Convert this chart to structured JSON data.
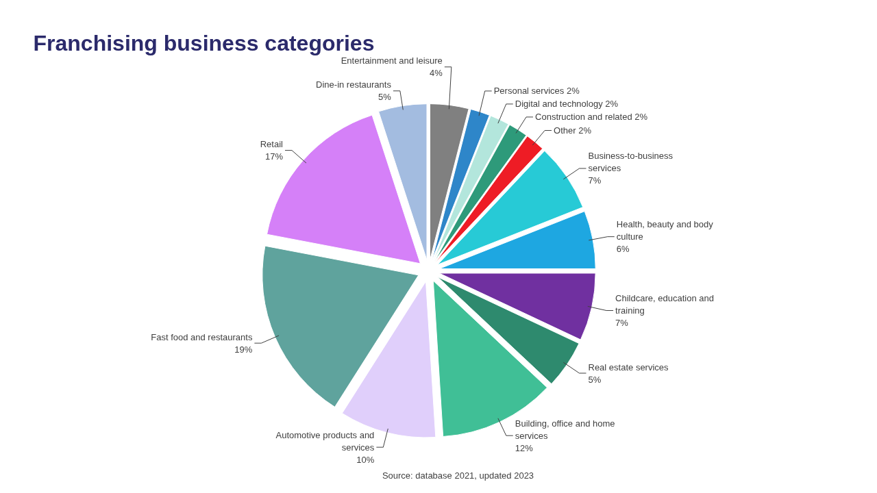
{
  "chart_data": {
    "type": "pie",
    "title": "Franchising business categories",
    "categories": [
      "Entertainment and leisure",
      "Personal services",
      "Digital and technology",
      "Construction and related",
      "Other",
      "Business-to-business services",
      "Health, beauty and body culture",
      "Childcare, education and training",
      "Real estate services",
      "Building, office and home services",
      "Automotive products and services",
      "Fast food and restaurants",
      "Retail",
      "Dine-in restaurants"
    ],
    "values": [
      4,
      2,
      2,
      2,
      2,
      7,
      6,
      7,
      5,
      12,
      10,
      19,
      17,
      5
    ],
    "colors": [
      "#808080",
      "#2e86c9",
      "#b3e6dc",
      "#2e9a7a",
      "#ee1c25",
      "#27cad6",
      "#1ea7e1",
      "#7030a0",
      "#2e8a6e",
      "#40bf96",
      "#e0cffb",
      "#5fa39d",
      "#d580f8",
      "#a3bce0"
    ],
    "value_labels": [
      "4%",
      "2%",
      "2%",
      "2%",
      "2%",
      "7%",
      "6%",
      "7%",
      "5%",
      "12%",
      "10%",
      "19%",
      "17%",
      "5%"
    ],
    "annotations": [
      "Source: database 2021, updated 2023"
    ]
  }
}
